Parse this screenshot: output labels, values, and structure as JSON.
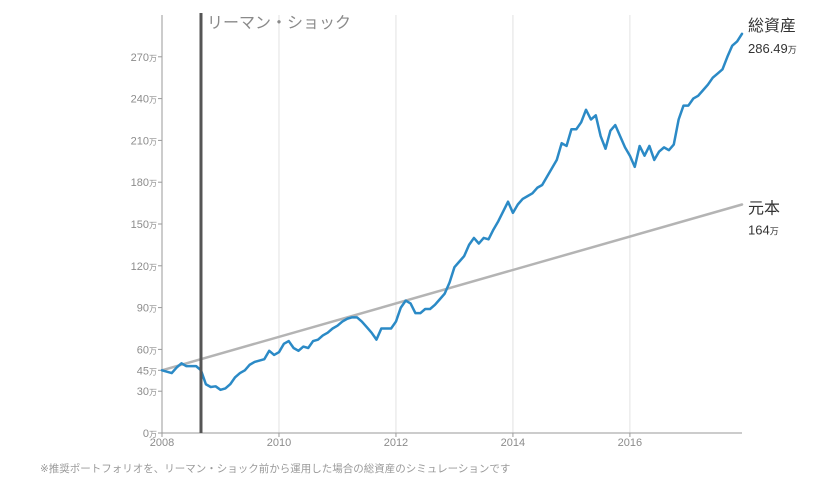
{
  "chart_data": {
    "type": "line",
    "x": [
      "2008-01",
      "2008-02",
      "2008-03",
      "2008-04",
      "2008-05",
      "2008-06",
      "2008-07",
      "2008-08",
      "2008-09",
      "2008-10",
      "2008-11",
      "2008-12",
      "2009-01",
      "2009-02",
      "2009-03",
      "2009-04",
      "2009-05",
      "2009-06",
      "2009-07",
      "2009-08",
      "2009-09",
      "2009-10",
      "2009-11",
      "2009-12",
      "2010-01",
      "2010-02",
      "2010-03",
      "2010-04",
      "2010-05",
      "2010-06",
      "2010-07",
      "2010-08",
      "2010-09",
      "2010-10",
      "2010-11",
      "2010-12",
      "2011-01",
      "2011-02",
      "2011-03",
      "2011-04",
      "2011-05",
      "2011-06",
      "2011-07",
      "2011-08",
      "2011-09",
      "2011-10",
      "2011-11",
      "2011-12",
      "2012-01",
      "2012-02",
      "2012-03",
      "2012-04",
      "2012-05",
      "2012-06",
      "2012-07",
      "2012-08",
      "2012-09",
      "2012-10",
      "2012-11",
      "2012-12",
      "2013-01",
      "2013-02",
      "2013-03",
      "2013-04",
      "2013-05",
      "2013-06",
      "2013-07",
      "2013-08",
      "2013-09",
      "2013-10",
      "2013-11",
      "2013-12",
      "2014-01",
      "2014-02",
      "2014-03",
      "2014-04",
      "2014-05",
      "2014-06",
      "2014-07",
      "2014-08",
      "2014-09",
      "2014-10",
      "2014-11",
      "2014-12",
      "2015-01",
      "2015-02",
      "2015-03",
      "2015-04",
      "2015-05",
      "2015-06",
      "2015-07",
      "2015-08",
      "2015-09",
      "2015-10",
      "2015-11",
      "2015-12",
      "2016-01",
      "2016-02",
      "2016-03",
      "2016-04",
      "2016-05",
      "2016-06",
      "2016-07",
      "2016-08",
      "2016-09",
      "2016-10",
      "2016-11",
      "2016-12",
      "2017-01",
      "2017-02",
      "2017-03",
      "2017-04",
      "2017-05",
      "2017-06",
      "2017-07",
      "2017-08",
      "2017-09",
      "2017-10",
      "2017-11",
      "2017-12"
    ],
    "xticks": [
      "2008",
      "2010",
      "2012",
      "2014",
      "2016"
    ],
    "xlim": [
      "2008-01",
      "2017-12"
    ],
    "ylim": [
      0,
      300
    ],
    "yticks": [
      0,
      30,
      45,
      60,
      90,
      120,
      150,
      180,
      210,
      240,
      270
    ],
    "yunit": "万",
    "grid": "vertical",
    "legend": "right",
    "series": [
      {
        "name": "総資産",
        "color": "#2b8ac6",
        "end_value": "286.49",
        "values": [
          45,
          44,
          43,
          47,
          50,
          48,
          48,
          48,
          45,
          35,
          33,
          33.5,
          31,
          32,
          35,
          40,
          43,
          45,
          49,
          51,
          52,
          53,
          59,
          56,
          58,
          64,
          66,
          61,
          59,
          62,
          61,
          66,
          67,
          70,
          72,
          75,
          77,
          80,
          82,
          83,
          83,
          80,
          76,
          72,
          67,
          75,
          75,
          75,
          80,
          90,
          95,
          93,
          86,
          86,
          89,
          89,
          92,
          96,
          100,
          108,
          119,
          123,
          127,
          135,
          140,
          136,
          140,
          139,
          146,
          152,
          159,
          166,
          158,
          164,
          168,
          170,
          172,
          176,
          178,
          184,
          190,
          196,
          208,
          206,
          218,
          218,
          223,
          232,
          225,
          228,
          213,
          204,
          217,
          221,
          213,
          205,
          199,
          191,
          206,
          199,
          206,
          196,
          202,
          205,
          203,
          207,
          225,
          235,
          235,
          240,
          242,
          246,
          250,
          255,
          258,
          261,
          270,
          278,
          281,
          286.49
        ]
      },
      {
        "name": "元本",
        "color": "#b4b4b4",
        "end_value": "164",
        "x": [
          "2008-01",
          "2017-12"
        ],
        "values": [
          45,
          164
        ]
      }
    ],
    "annotations": [
      {
        "x": "2008-09",
        "label": "リーマン・ショック",
        "color": "#555555"
      }
    ]
  },
  "footnote": "※推奨ポートフォリオを、リーマン・ショック前から運用した場合の総資産のシミュレーションです"
}
